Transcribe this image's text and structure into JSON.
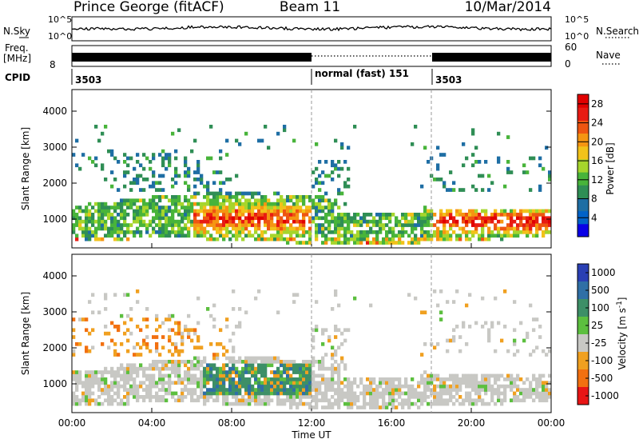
{
  "header": {
    "site": "Prince George (fitACF)",
    "beam": "Beam 11",
    "date": "10/Mar/2014"
  },
  "noise_panel": {
    "left_label": "N.Sky",
    "right_label": "N.Search",
    "left_ticks": [
      "10^5",
      "10^0"
    ],
    "right_ticks": [
      "10^5",
      "10^0"
    ]
  },
  "freq_panel": {
    "left_label_top": "Freq.",
    "left_label_bottom": "[MHz]",
    "left_tick": "8",
    "right_label": "Nave",
    "right_ticks": [
      "60",
      "0"
    ]
  },
  "cpid": {
    "label": "CPID",
    "segments": [
      {
        "start_hour": 0,
        "label": "3503"
      },
      {
        "start_hour": 12,
        "label": "normal (fast) 151"
      },
      {
        "start_hour": 18,
        "label": "3503"
      }
    ]
  },
  "chart_data": [
    {
      "type": "heatmap",
      "title": "",
      "xlabel": "Time UT",
      "ylabel": "Slant Range [km]",
      "xlim": [
        0,
        24
      ],
      "ylim": [
        200,
        4600
      ],
      "y_ticks": [
        1000,
        2000,
        3000,
        4000
      ],
      "x_tick_labels": [
        "00:00",
        "04:00",
        "08:00",
        "12:00",
        "16:00",
        "20:00",
        "00:00"
      ],
      "colorbar": {
        "label": "Power [dB]",
        "ticks": [
          4,
          8,
          12,
          16,
          20,
          24,
          28
        ],
        "range": [
          0,
          30
        ],
        "colors": [
          "#0a00e6",
          "#0062c9",
          "#1e6ea4",
          "#2f8e55",
          "#48b43a",
          "#a6d52c",
          "#f2c21a",
          "#f59512",
          "#ee5511",
          "#e81b13",
          "#e10000"
        ]
      },
      "features": [
        {
          "name": "near-range band",
          "t": [
            0,
            24
          ],
          "range": [
            350,
            1600
          ],
          "power": [
            8,
            30
          ]
        },
        {
          "name": "strong echoes",
          "t": [
            6,
            12
          ],
          "range": [
            600,
            1600
          ],
          "power": [
            24,
            30
          ]
        },
        {
          "name": "far-range patches",
          "t": [
            0,
            8
          ],
          "range": [
            1800,
            3000
          ],
          "power": [
            4,
            16
          ]
        }
      ]
    },
    {
      "type": "heatmap",
      "title": "",
      "xlabel": "Time UT",
      "ylabel": "Slant Range [km]",
      "xlim": [
        0,
        24
      ],
      "ylim": [
        200,
        4600
      ],
      "y_ticks": [
        1000,
        2000,
        3000,
        4000
      ],
      "x_tick_labels": [
        "00:00",
        "04:00",
        "08:00",
        "12:00",
        "16:00",
        "20:00",
        "00:00"
      ],
      "colorbar": {
        "label": "Velocity [m s^-1]",
        "tick_labels": [
          "1000",
          "500",
          "100",
          "25",
          "-25",
          "-100",
          "-500",
          "-1000"
        ],
        "colors": [
          "#2a3fb4",
          "#2f6fa6",
          "#3d8f67",
          "#5cbf3f",
          "#c8c8c4",
          "#f0a020",
          "#f27010",
          "#e81515"
        ]
      },
      "features": [
        {
          "name": "ground scatter",
          "t": [
            0,
            24
          ],
          "range": [
            400,
            1800
          ],
          "velocity": [
            -25,
            25
          ]
        },
        {
          "name": "positive velocity echoes",
          "t": [
            6,
            12
          ],
          "range": [
            700,
            1600
          ],
          "velocity": [
            100,
            500
          ]
        },
        {
          "name": "negative velocity echoes",
          "t": [
            3,
            8
          ],
          "range": [
            1800,
            2700
          ],
          "velocity": [
            -500,
            -100
          ]
        }
      ]
    }
  ],
  "x_axis": {
    "label": "Time UT",
    "tick_labels": [
      "00:00",
      "04:00",
      "08:00",
      "12:00",
      "16:00",
      "20:00",
      "00:00"
    ]
  }
}
